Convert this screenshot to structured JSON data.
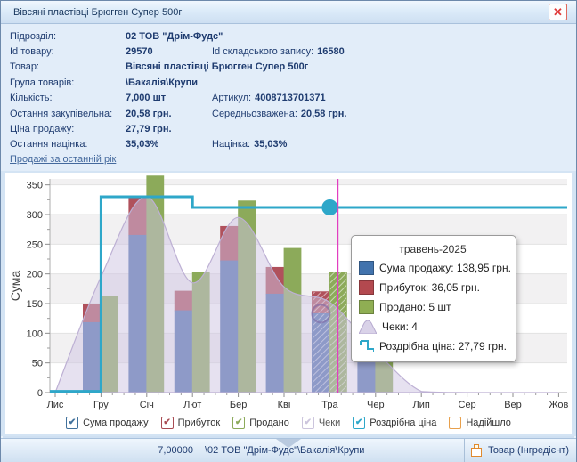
{
  "window": {
    "title": "Вівсяні пластівці Брюгген Супер 500г",
    "close_glyph": "✕"
  },
  "info": {
    "rows": [
      {
        "label": "Підрозділ:",
        "value": "02 ТОВ \"Дрім-Фудс\""
      },
      {
        "label": "Id товару:",
        "value": "29570",
        "label2": "Id складського запису:",
        "value2": "16580"
      },
      {
        "label": "Товар:",
        "value": "Вівсяні пластівці Брюгген Супер 500г"
      },
      {
        "label": "Група товарів:",
        "value": "\\Бакалія\\Крупи"
      },
      {
        "label": "Кількість:",
        "value": "7,000 шт",
        "label2": "Артикул:",
        "value2": "4008713701371"
      },
      {
        "label": "Остання закупівельна:",
        "value": "20,58 грн.",
        "label2": "Середньозважена:",
        "value2": "20,58 грн."
      },
      {
        "label": "Ціна продажу:",
        "value": "27,79 грн."
      },
      {
        "label": "Остання націнка:",
        "value": "35,03%",
        "label2": "Націнка:",
        "value2": "35,03%"
      }
    ]
  },
  "sales_link": "Продажі за останній рік",
  "chart_data": {
    "type": "combo: stacked bars + bars + area + step-line",
    "title": "Продажі за останній рік",
    "ylabel": "Сума",
    "ylim": [
      0,
      360
    ],
    "ytick_step": 50,
    "yticks": [
      0,
      50,
      100,
      150,
      200,
      250,
      300,
      350
    ],
    "grid": "horizontal gridlines with alternating 50-unit gray/white bands",
    "categories": [
      "Лис",
      "Гру",
      "Січ",
      "Лют",
      "Бер",
      "Кві",
      "Тра",
      "Чер",
      "Лип",
      "Сер",
      "Вер",
      "Жов"
    ],
    "series": [
      {
        "name": "Сума продажу",
        "type": "bar",
        "color": "#4e70af",
        "values": [
          0,
          118,
          265,
          138,
          222,
          166,
          133,
          120,
          0,
          0,
          0,
          0
        ]
      },
      {
        "name": "Прибуток",
        "type": "bar-stacked-on-sales",
        "color": "#b0515c",
        "stack_top": [
          0,
          149,
          330,
          171,
          280,
          211,
          170,
          150,
          0,
          0,
          0,
          0
        ]
      },
      {
        "name": "Продано",
        "type": "bar",
        "color": "#8caa5a",
        "values": [
          0,
          162,
          365,
          203,
          323,
          243,
          203,
          160,
          0,
          0,
          0,
          0
        ]
      },
      {
        "name": "Чеки",
        "type": "area",
        "color": "#d9d2e8",
        "values": [
          0,
          195,
          330,
          185,
          295,
          178,
          152,
          70,
          2,
          0,
          0,
          0
        ]
      },
      {
        "name": "Роздрібна ціна",
        "type": "step-line",
        "color": "#2ea7c9",
        "steps": [
          {
            "at": "left",
            "value": 2
          },
          {
            "at": "Гру",
            "value": 330
          },
          {
            "at": "Лют",
            "value": 312
          }
        ],
        "marker": {
          "month": "Тра",
          "value": 312
        }
      }
    ],
    "highlight": {
      "month": "Тра",
      "period_label": "травень-2025",
      "actual": {
        "sales": "138,95 грн.",
        "profit": "36,05 грн.",
        "sold": "5 шт",
        "receipts": "4",
        "retail_price": "27,79 грн."
      },
      "crosshair_color": "#e23ec1"
    }
  },
  "tooltip": {
    "title": "травень-2025",
    "rows": [
      {
        "swatch": "square",
        "color": "#4273ad",
        "text": "Сума продажу: 138,95 грн."
      },
      {
        "swatch": "square",
        "color": "#b3494f",
        "text": "Прибуток: 36,05 грн."
      },
      {
        "swatch": "square",
        "color": "#8fae53",
        "text": "Продано: 5 шт"
      },
      {
        "swatch": "area",
        "color": "#d9d2e8",
        "text": "Чеки: 4"
      },
      {
        "swatch": "step",
        "color": "#2ea7c9",
        "text": "Роздрібна ціна: 27,79 грн."
      }
    ]
  },
  "legend": {
    "items": [
      {
        "label": "Сума продажу",
        "color": "#41719c",
        "checked": true,
        "muted": false
      },
      {
        "label": "Прибуток",
        "color": "#a84b52",
        "checked": true,
        "muted": false
      },
      {
        "label": "Продано",
        "color": "#8caa5a",
        "checked": true,
        "muted": false
      },
      {
        "label": "Чеки",
        "color": "#ccc5dd",
        "checked": true,
        "muted": true
      },
      {
        "label": "Роздрібна ціна",
        "color": "#2ea7c9",
        "checked": true,
        "muted": false
      },
      {
        "label": "Надійшло",
        "color": "#e8a04c",
        "checked": false,
        "muted": false
      }
    ]
  },
  "statusbar": {
    "quantity": "7,00000",
    "path": "\\02 ТОВ \"Дрім-Фудс\"\\Бакалія\\Крупи",
    "type_label": "Товар (Інгредієнт)"
  }
}
